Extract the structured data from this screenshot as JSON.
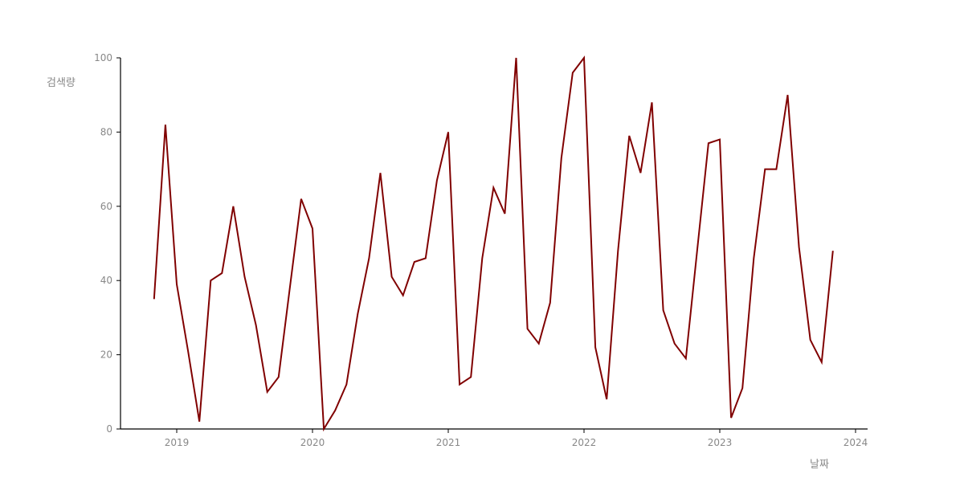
{
  "chart_data": {
    "type": "line",
    "title": "",
    "xlabel": "날짜",
    "ylabel": "검색량",
    "xlim": [
      "2018-07-29",
      "2024-01-31"
    ],
    "ylim": [
      0,
      100
    ],
    "grid": false,
    "x_ticks": [
      "2019",
      "2020",
      "2021",
      "2022",
      "2023",
      "2024"
    ],
    "y_ticks": [
      "0",
      "20",
      "40",
      "60",
      "80",
      "100"
    ],
    "line_color": "#800000",
    "x": [
      "2018-11",
      "2018-12",
      "2019-01",
      "2019-02",
      "2019-03",
      "2019-04",
      "2019-05",
      "2019-06",
      "2019-07",
      "2019-08",
      "2019-09",
      "2019-10",
      "2019-11",
      "2019-12",
      "2020-01",
      "2020-02",
      "2020-03",
      "2020-04",
      "2020-05",
      "2020-06",
      "2020-07",
      "2020-08",
      "2020-09",
      "2020-10",
      "2020-11",
      "2020-12",
      "2021-01",
      "2021-02",
      "2021-03",
      "2021-04",
      "2021-05",
      "2021-06",
      "2021-07",
      "2021-08",
      "2021-09",
      "2021-10",
      "2021-11",
      "2021-12",
      "2022-01",
      "2022-02",
      "2022-03",
      "2022-04",
      "2022-05",
      "2022-06",
      "2022-07",
      "2022-08",
      "2022-09",
      "2022-10",
      "2022-11",
      "2022-12",
      "2023-01",
      "2023-02",
      "2023-03",
      "2023-04",
      "2023-05",
      "2023-06",
      "2023-07",
      "2023-08",
      "2023-09",
      "2023-10",
      "2023-11"
    ],
    "values": [
      35,
      82,
      39,
      21,
      2,
      40,
      42,
      60,
      41,
      28,
      10,
      14,
      38,
      62,
      54,
      0,
      5,
      12,
      31,
      46,
      69,
      41,
      36,
      45,
      46,
      67,
      80,
      12,
      14,
      46,
      65,
      58,
      100,
      27,
      23,
      34,
      73,
      96,
      100,
      22,
      8,
      48,
      79,
      69,
      88,
      32,
      23,
      19,
      48,
      77,
      78,
      3,
      11,
      46,
      70,
      70,
      90,
      49,
      24,
      18,
      48
    ]
  }
}
